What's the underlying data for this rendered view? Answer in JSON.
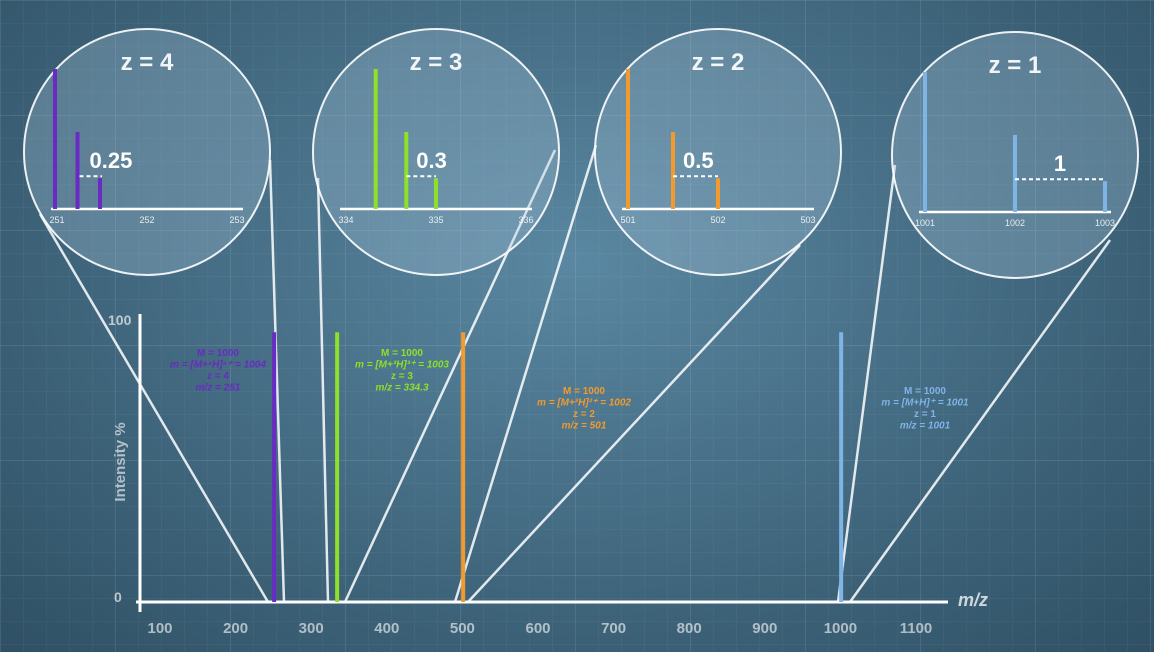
{
  "chart_data": {
    "type": "bar",
    "xlabel": "m/z",
    "ylabel": "Intensity %",
    "xlim": [
      80,
      1150
    ],
    "ylim": [
      0,
      100
    ],
    "xticks": [
      "100",
      "200",
      "300",
      "400",
      "500",
      "600",
      "700",
      "800",
      "900",
      "1000",
      "1100"
    ],
    "yticks": [
      "0",
      "100"
    ],
    "colors": {
      "z4": "#6a2bc2",
      "z3": "#8ee028",
      "z2": "#f29a2e",
      "z1": "#7fb4e6"
    },
    "peaks": [
      {
        "id": "z4",
        "mz": 251,
        "value": 95,
        "color": "#6a2bc2",
        "annotation": [
          "M = 1000",
          "m = [M+⁴H]⁴⁺ = 1004",
          "z = 4",
          "m/z = 251"
        ]
      },
      {
        "id": "z3",
        "mz": 334.3,
        "value": 95,
        "color": "#8ee028",
        "annotation": [
          "M = 1000",
          "m = [M+³H]³⁺ = 1003",
          "z = 3",
          "m/z = 334.3"
        ]
      },
      {
        "id": "z2",
        "mz": 501,
        "value": 95,
        "color": "#f29a2e",
        "annotation": [
          "M = 1000",
          "m = [M+²H]²⁺ = 1002",
          "z = 2",
          "m/z = 501"
        ]
      },
      {
        "id": "z1",
        "mz": 1001,
        "value": 95,
        "color": "#7fb4e6",
        "annotation": [
          "M = 1000",
          "m = [M+H]⁺ = 1001",
          "z = 1",
          "m/z = 1001"
        ]
      }
    ],
    "insets": [
      {
        "id": "z4",
        "title": "z = 4",
        "spacing_label": "0.25",
        "color": "#6a2bc2",
        "ticks": [
          "251",
          "252",
          "253"
        ],
        "tick_values": [
          251,
          252,
          253
        ],
        "peaks": [
          {
            "mz": 251.0,
            "value": 100
          },
          {
            "mz": 251.25,
            "value": 55
          },
          {
            "mz": 251.5,
            "value": 22
          }
        ]
      },
      {
        "id": "z3",
        "title": "z = 3",
        "spacing_label": "0.3",
        "color": "#8ee028",
        "ticks": [
          "334",
          "335",
          "336"
        ],
        "tick_values": [
          334,
          335,
          336
        ],
        "peaks": [
          {
            "mz": 334.33,
            "value": 100
          },
          {
            "mz": 334.67,
            "value": 55
          },
          {
            "mz": 335.0,
            "value": 22
          }
        ]
      },
      {
        "id": "z2",
        "title": "z = 2",
        "spacing_label": "0.5",
        "color": "#f29a2e",
        "ticks": [
          "501",
          "502",
          "503"
        ],
        "tick_values": [
          501,
          502,
          503
        ],
        "peaks": [
          {
            "mz": 501.0,
            "value": 100
          },
          {
            "mz": 501.5,
            "value": 55
          },
          {
            "mz": 502.0,
            "value": 22
          }
        ]
      },
      {
        "id": "z1",
        "title": "z = 1",
        "spacing_label": "1",
        "color": "#7fb4e6",
        "ticks": [
          "1001",
          "1002",
          "1003"
        ],
        "tick_values": [
          1001,
          1002,
          1003
        ],
        "peaks": [
          {
            "mz": 1001,
            "value": 100
          },
          {
            "mz": 1002,
            "value": 55
          },
          {
            "mz": 1003,
            "value": 22
          }
        ]
      }
    ]
  }
}
